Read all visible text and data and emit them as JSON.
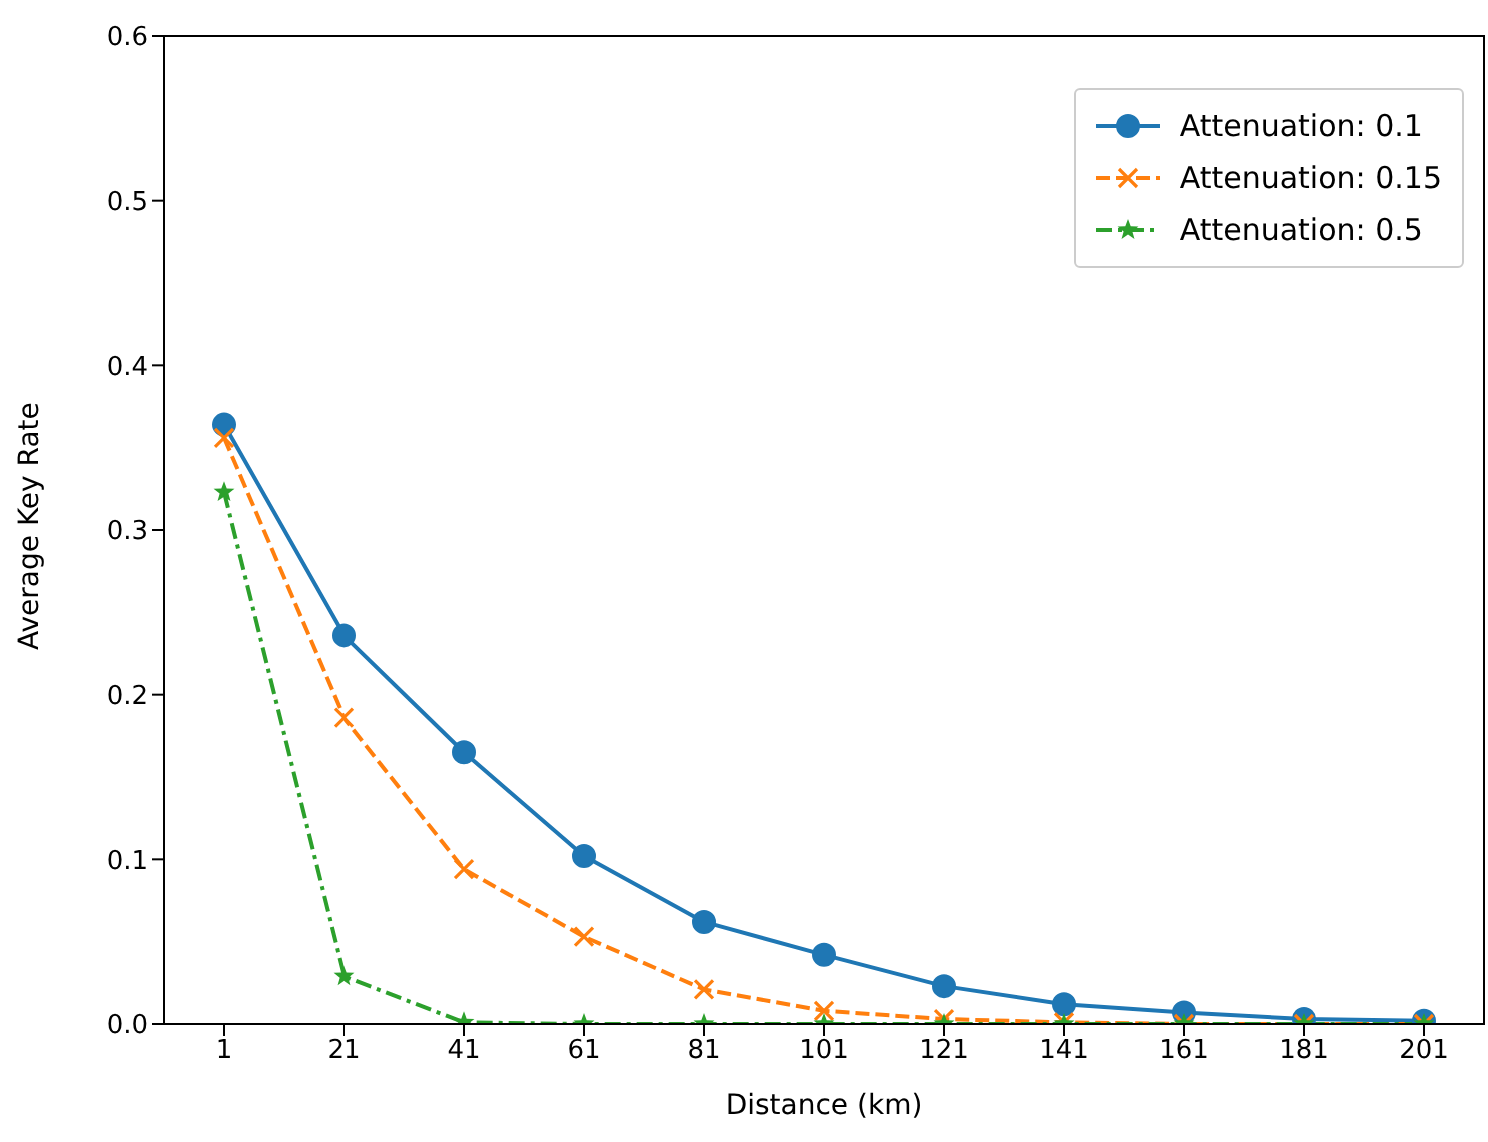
{
  "chart_data": {
    "type": "line",
    "xlabel": "Distance (km)",
    "ylabel": "Average Key Rate",
    "x": [
      1,
      21,
      41,
      61,
      81,
      101,
      121,
      141,
      161,
      181,
      201
    ],
    "series": [
      {
        "name": "Attenuation: 0.1",
        "color": "#1f77b4",
        "marker": "circle",
        "line_style": "solid",
        "values": [
          0.364,
          0.236,
          0.165,
          0.102,
          0.062,
          0.042,
          0.023,
          0.012,
          0.007,
          0.003,
          0.002
        ]
      },
      {
        "name": "Attenuation: 0.15",
        "color": "#ff7f0e",
        "marker": "cross",
        "line_style": "dashed",
        "values": [
          0.356,
          0.186,
          0.094,
          0.053,
          0.021,
          0.008,
          0.003,
          0.001,
          0.0,
          0.0,
          0.0
        ]
      },
      {
        "name": "Attenuation: 0.5",
        "color": "#2ca02c",
        "marker": "star",
        "line_style": "dashdot",
        "values": [
          0.323,
          0.029,
          0.001,
          0.0,
          0.0,
          0.0,
          0.0,
          0.0,
          0.0,
          0.0,
          0.0
        ]
      }
    ],
    "xlim": [
      -9,
      211
    ],
    "xticks": [
      1,
      21,
      41,
      61,
      81,
      101,
      121,
      141,
      161,
      181,
      201
    ],
    "ylim": [
      0,
      0.6
    ],
    "yticks": [
      {
        "value": 0,
        "label": "0.0"
      },
      0.1,
      0.2,
      0.3,
      0.4,
      0.5,
      0.6
    ],
    "legend": "top right"
  }
}
